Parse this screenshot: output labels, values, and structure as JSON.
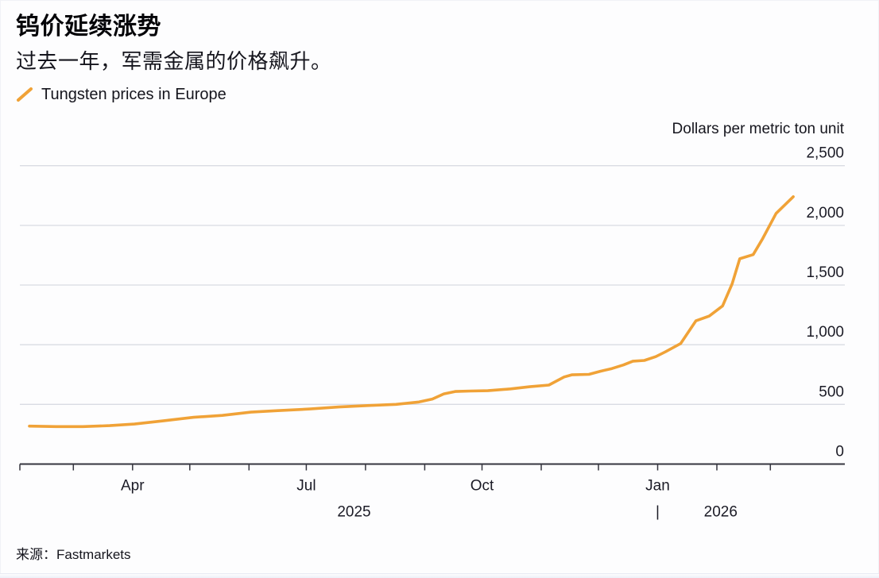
{
  "header": {
    "title": "钨价延续涨势",
    "subtitle": "过去一年，军需金属的价格飙升。"
  },
  "legend": {
    "label": "Tungsten prices in Europe",
    "marker": "orange-slash"
  },
  "footer": {
    "source": "来源：Fastmarkets"
  },
  "colors": {
    "line": "#F0A237",
    "grid": "#D9DBE3",
    "axis": "#35353F",
    "text": "#1B1B26"
  },
  "chart_data": {
    "type": "line",
    "title": "Tungsten prices in Europe",
    "xlabel": "",
    "ylabel": "Dollars per metric ton unit",
    "ylim": [
      0,
      2500
    ],
    "grid": true,
    "legend_position": "top-left",
    "y_ticks": [
      {
        "v": 0,
        "label": "0"
      },
      {
        "v": 500,
        "label": "500"
      },
      {
        "v": 1000,
        "label": "1,000"
      },
      {
        "v": 1500,
        "label": "1,500"
      },
      {
        "v": 2000,
        "label": "2,000"
      },
      {
        "v": 2500,
        "label": "2,500"
      }
    ],
    "x_domain": [
      "2025-02-01",
      "2026-04-09"
    ],
    "x_ticks": [
      {
        "date": "2025-02-01",
        "label": ""
      },
      {
        "date": "2025-03-01",
        "label": ""
      },
      {
        "date": "2025-04-01",
        "label": "Apr"
      },
      {
        "date": "2025-05-01",
        "label": ""
      },
      {
        "date": "2025-06-01",
        "label": ""
      },
      {
        "date": "2025-07-01",
        "label": "Jul"
      },
      {
        "date": "2025-08-01",
        "label": ""
      },
      {
        "date": "2025-09-01",
        "label": ""
      },
      {
        "date": "2025-10-01",
        "label": "Oct"
      },
      {
        "date": "2025-11-01",
        "label": ""
      },
      {
        "date": "2025-12-01",
        "label": ""
      },
      {
        "date": "2026-01-01",
        "label": "Jan"
      },
      {
        "date": "2026-02-01",
        "label": ""
      },
      {
        "date": "2026-03-01",
        "label": ""
      }
    ],
    "year_labels": [
      {
        "date": "2025-07-26",
        "text": "2025"
      },
      {
        "date": "2026-01-01",
        "text": "|"
      },
      {
        "date": "2026-02-03",
        "text": "2026"
      }
    ],
    "series": [
      {
        "name": "Tungsten prices in Europe",
        "points": [
          [
            "2025-02-06",
            318
          ],
          [
            "2025-02-20",
            314
          ],
          [
            "2025-03-06",
            314
          ],
          [
            "2025-03-20",
            322
          ],
          [
            "2025-04-02",
            335
          ],
          [
            "2025-04-17",
            362
          ],
          [
            "2025-05-03",
            392
          ],
          [
            "2025-05-18",
            408
          ],
          [
            "2025-06-02",
            435
          ],
          [
            "2025-06-16",
            448
          ],
          [
            "2025-07-03",
            462
          ],
          [
            "2025-07-18",
            478
          ],
          [
            "2025-08-02",
            490
          ],
          [
            "2025-08-17",
            500
          ],
          [
            "2025-08-29",
            520
          ],
          [
            "2025-09-05",
            545
          ],
          [
            "2025-09-11",
            588
          ],
          [
            "2025-09-17",
            608
          ],
          [
            "2025-09-25",
            612
          ],
          [
            "2025-10-04",
            615
          ],
          [
            "2025-10-16",
            630
          ],
          [
            "2025-10-26",
            648
          ],
          [
            "2025-11-05",
            662
          ],
          [
            "2025-11-13",
            730
          ],
          [
            "2025-11-17",
            748
          ],
          [
            "2025-11-26",
            752
          ],
          [
            "2025-12-02",
            778
          ],
          [
            "2025-12-08",
            800
          ],
          [
            "2025-12-14",
            830
          ],
          [
            "2025-12-19",
            862
          ],
          [
            "2025-12-25",
            868
          ],
          [
            "2025-12-31",
            900
          ],
          [
            "2026-01-05",
            940
          ],
          [
            "2026-01-13",
            1010
          ],
          [
            "2026-01-21",
            1200
          ],
          [
            "2026-01-28",
            1240
          ],
          [
            "2026-02-04",
            1325
          ],
          [
            "2026-02-09",
            1510
          ],
          [
            "2026-02-13",
            1720
          ],
          [
            "2026-02-20",
            1755
          ],
          [
            "2026-02-25",
            1890
          ],
          [
            "2026-03-04",
            2100
          ],
          [
            "2026-03-13",
            2240
          ]
        ]
      }
    ]
  }
}
